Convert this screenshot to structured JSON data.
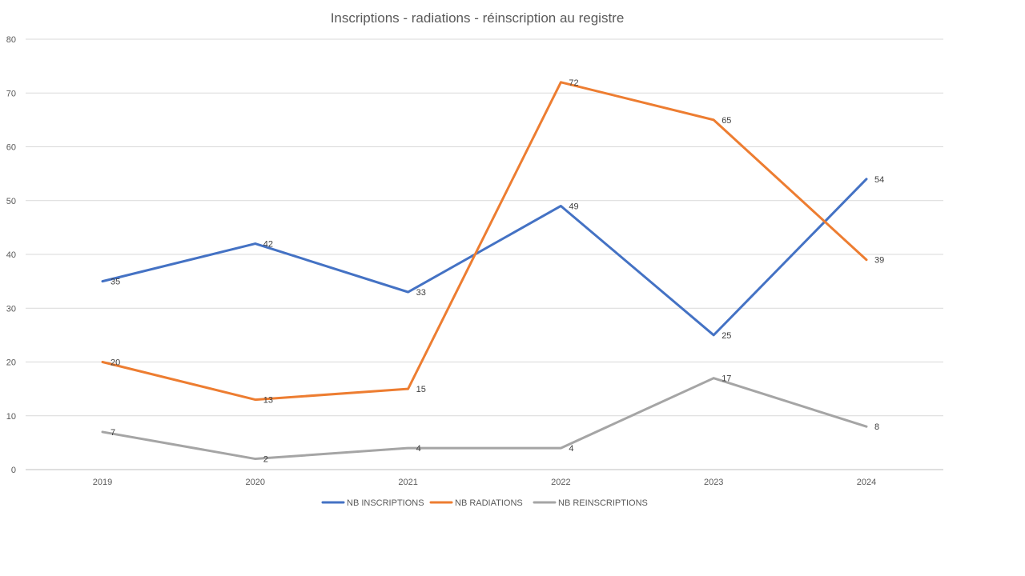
{
  "chart_data": {
    "type": "line",
    "title": "Inscriptions - radiations - réinscription au registre",
    "xlabel": "",
    "ylabel": "",
    "categories": [
      "2019",
      "2020",
      "2021",
      "2022",
      "2023",
      "2024"
    ],
    "ylim": [
      0,
      80
    ],
    "yticks": [
      0,
      10,
      20,
      30,
      40,
      50,
      60,
      70,
      80
    ],
    "grid": true,
    "legend_position": "bottom",
    "series": [
      {
        "name": "NB INSCRIPTIONS",
        "color": "#4472c4",
        "values": [
          35,
          42,
          33,
          49,
          25,
          54
        ]
      },
      {
        "name": "NB RADIATIONS",
        "color": "#ed7d31",
        "values": [
          20,
          13,
          15,
          72,
          65,
          39
        ]
      },
      {
        "name": "NB REINSCRIPTIONS",
        "color": "#a5a5a5",
        "values": [
          7,
          2,
          4,
          4,
          17,
          8
        ]
      }
    ]
  }
}
